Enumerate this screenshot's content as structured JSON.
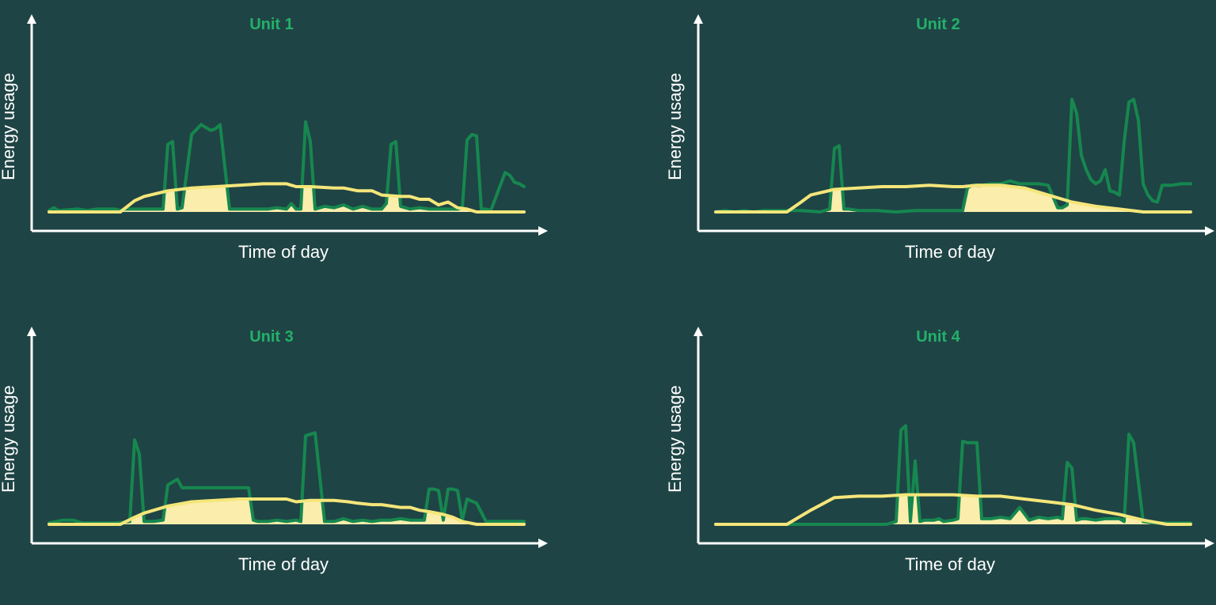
{
  "colors": {
    "background": "#1f4445",
    "axis": "#ffffff",
    "title": "#23b16a",
    "usage_line": "#16874f",
    "solar_line": "#f5e67a",
    "solar_fill": "#fbedab"
  },
  "chart_data": [
    {
      "type": "line",
      "title": "Unit 1",
      "xlabel": "Time of day",
      "ylabel": "Energy usage",
      "xlim": [
        0,
        100
      ],
      "ylim": [
        0,
        100
      ],
      "grid": false,
      "series": [
        {
          "role": "usage",
          "x": [
            0,
            1,
            2,
            6,
            8,
            10,
            14,
            15,
            16,
            20,
            24,
            25,
            26,
            27,
            28,
            30,
            32,
            34,
            35,
            36,
            38,
            40,
            42,
            44,
            46,
            48,
            50,
            51,
            52,
            53,
            54,
            55,
            56,
            58,
            60,
            62,
            64,
            66,
            68,
            70,
            71,
            72,
            73,
            74,
            76,
            78,
            80,
            82,
            84,
            86,
            87,
            88,
            89,
            90,
            91,
            92,
            93,
            94,
            96,
            97,
            98,
            99,
            100
          ],
          "y": [
            1,
            3,
            1,
            2,
            1,
            2,
            2,
            1,
            2,
            2,
            2,
            48,
            50,
            2,
            3,
            55,
            62,
            58,
            59,
            62,
            2,
            2,
            2,
            2,
            2,
            3,
            2,
            6,
            2,
            2,
            64,
            50,
            2,
            4,
            3,
            5,
            2,
            4,
            2,
            2,
            6,
            48,
            50,
            4,
            2,
            3,
            2,
            2,
            2,
            2,
            3,
            51,
            55,
            54,
            2,
            2,
            1,
            10,
            28,
            26,
            21,
            20,
            18
          ]
        },
        {
          "role": "solar",
          "x": [
            0,
            15,
            18,
            20,
            25,
            30,
            35,
            40,
            45,
            50,
            52,
            55,
            60,
            62,
            65,
            68,
            70,
            74,
            76,
            78,
            80,
            82,
            84,
            86,
            88,
            90,
            92,
            95,
            100
          ],
          "y": [
            0,
            0,
            8,
            11,
            15,
            17,
            18,
            19,
            20,
            20,
            18,
            18,
            17,
            17,
            15,
            15,
            12,
            11,
            11,
            9,
            9,
            5,
            7,
            3,
            2,
            0,
            0,
            0,
            0
          ]
        }
      ]
    },
    {
      "type": "line",
      "title": "Unit 2",
      "xlabel": "Time of day",
      "ylabel": "Energy usage",
      "xlim": [
        0,
        100
      ],
      "ylim": [
        0,
        100
      ],
      "grid": false,
      "series": [
        {
          "role": "usage",
          "x": [
            0,
            2,
            4,
            6,
            8,
            10,
            14,
            18,
            22,
            24,
            25,
            26,
            27,
            28,
            30,
            34,
            38,
            42,
            46,
            48,
            50,
            52,
            53,
            54,
            56,
            58,
            60,
            62,
            64,
            66,
            68,
            70,
            72,
            73,
            74,
            75,
            76,
            77,
            78,
            79,
            80,
            81,
            82,
            83,
            84,
            85,
            86,
            87,
            88,
            89,
            90,
            91,
            92,
            93,
            94,
            96,
            98,
            100
          ],
          "y": [
            0,
            1,
            0,
            1,
            0,
            1,
            1,
            1,
            0,
            2,
            45,
            47,
            2,
            2,
            1,
            1,
            0,
            1,
            1,
            1,
            1,
            1,
            17,
            19,
            19,
            20,
            20,
            22,
            20,
            20,
            20,
            19,
            3,
            3,
            5,
            80,
            70,
            40,
            30,
            23,
            20,
            22,
            30,
            15,
            14,
            12,
            50,
            78,
            80,
            65,
            20,
            12,
            8,
            7,
            19,
            19,
            20,
            20
          ]
        },
        {
          "role": "solar",
          "x": [
            0,
            15,
            18,
            20,
            25,
            30,
            35,
            40,
            45,
            50,
            52,
            55,
            60,
            65,
            70,
            75,
            80,
            85,
            90,
            95,
            100
          ],
          "y": [
            0,
            0,
            7,
            12,
            16,
            17,
            18,
            18,
            19,
            18,
            18,
            19,
            19,
            17,
            12,
            7,
            4,
            2,
            0,
            0,
            0
          ]
        }
      ]
    },
    {
      "type": "line",
      "title": "Unit 3",
      "xlabel": "Time of day",
      "ylabel": "Energy usage",
      "xlim": [
        0,
        100
      ],
      "ylim": [
        0,
        100
      ],
      "grid": false,
      "series": [
        {
          "role": "usage",
          "x": [
            0,
            3,
            5,
            7,
            10,
            14,
            17,
            18,
            19,
            20,
            22,
            24,
            25,
            26,
            27,
            28,
            30,
            34,
            38,
            40,
            42,
            43,
            44,
            46,
            48,
            50,
            52,
            53,
            54,
            56,
            58,
            60,
            62,
            64,
            66,
            68,
            70,
            72,
            74,
            76,
            78,
            79,
            80,
            81,
            82,
            83,
            84,
            85,
            86,
            87,
            88,
            90,
            92,
            95,
            100
          ],
          "y": [
            1,
            3,
            3,
            1,
            1,
            1,
            2,
            60,
            50,
            2,
            2,
            3,
            28,
            30,
            32,
            26,
            26,
            26,
            26,
            26,
            26,
            3,
            2,
            2,
            3,
            2,
            3,
            2,
            63,
            65,
            2,
            2,
            4,
            2,
            3,
            2,
            3,
            3,
            4,
            3,
            3,
            3,
            25,
            25,
            24,
            3,
            25,
            25,
            24,
            3,
            18,
            15,
            2,
            2,
            2
          ]
        },
        {
          "role": "solar",
          "x": [
            0,
            15,
            18,
            20,
            25,
            30,
            35,
            40,
            45,
            50,
            52,
            55,
            60,
            63,
            65,
            68,
            70,
            72,
            74,
            76,
            78,
            80,
            83,
            85,
            87,
            90,
            92,
            95,
            100
          ],
          "y": [
            0,
            0,
            5,
            8,
            13,
            16,
            17,
            18,
            18,
            18,
            16,
            17,
            17,
            16,
            15,
            14,
            14,
            13,
            12,
            12,
            10,
            9,
            7,
            5,
            2,
            0,
            0,
            0,
            0
          ]
        }
      ]
    },
    {
      "type": "line",
      "title": "Unit 4",
      "xlabel": "Time of day",
      "ylabel": "Energy usage",
      "xlim": [
        0,
        100
      ],
      "ylim": [
        0,
        100
      ],
      "grid": false,
      "series": [
        {
          "role": "usage",
          "x": [
            0,
            4,
            8,
            12,
            16,
            20,
            24,
            28,
            32,
            36,
            38,
            39,
            40,
            41,
            42,
            43,
            44,
            45,
            46,
            47,
            48,
            50,
            51,
            52,
            53,
            54,
            55,
            56,
            58,
            60,
            62,
            64,
            66,
            68,
            70,
            72,
            73,
            74,
            75,
            76,
            77,
            78,
            80,
            82,
            84,
            85,
            86,
            87,
            88,
            90,
            92,
            94,
            96,
            98,
            100
          ],
          "y": [
            0,
            0,
            0,
            0,
            0,
            0,
            0,
            0,
            0,
            0,
            2,
            67,
            70,
            2,
            45,
            2,
            3,
            3,
            3,
            4,
            2,
            3,
            4,
            59,
            58,
            58,
            58,
            4,
            4,
            5,
            4,
            12,
            3,
            5,
            4,
            5,
            4,
            44,
            40,
            3,
            4,
            4,
            3,
            4,
            4,
            4,
            2,
            64,
            58,
            2,
            1,
            1,
            1,
            1,
            1
          ]
        },
        {
          "role": "solar",
          "x": [
            0,
            15,
            20,
            25,
            30,
            35,
            40,
            45,
            50,
            55,
            60,
            65,
            70,
            75,
            80,
            85,
            90,
            95,
            100
          ],
          "y": [
            0,
            0,
            10,
            19,
            20,
            20,
            21,
            21,
            21,
            20,
            20,
            18,
            16,
            14,
            10,
            7,
            3,
            0,
            0
          ]
        }
      ]
    }
  ]
}
